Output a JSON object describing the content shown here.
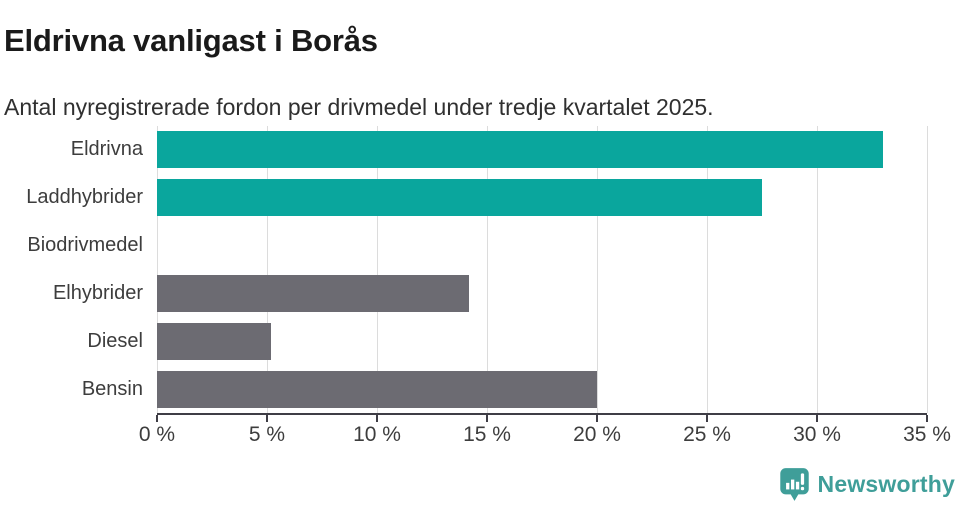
{
  "header": {
    "title": "Eldrivna vanligast i Borås",
    "subtitle": "Antal nyregistrerade fordon per drivmedel under tredje kvartalet 2025."
  },
  "chart_data": {
    "type": "bar",
    "orientation": "horizontal",
    "title": "Eldrivna vanligast i Borås",
    "subtitle": "Antal nyregistrerade fordon per drivmedel under tredje kvartalet 2025.",
    "categories": [
      "Eldrivna",
      "Laddhybrider",
      "Biodrivmedel",
      "Elhybrider",
      "Diesel",
      "Bensin"
    ],
    "values": [
      33,
      27.5,
      0,
      14.2,
      5.2,
      20
    ],
    "unit": "%",
    "bar_colors": [
      "#0aa69d",
      "#0aa69d",
      "#0aa69d",
      "#6c6b72",
      "#6c6b72",
      "#6c6b72"
    ],
    "xlim": [
      0,
      35
    ],
    "x_tick_values": [
      0,
      5,
      10,
      15,
      20,
      25,
      30,
      35
    ],
    "x_tick_labels": [
      "0 %",
      "5 %",
      "10 %",
      "15 %",
      "20 %",
      "25 %",
      "30 %",
      "35 %"
    ],
    "grid": true,
    "legend": false,
    "xlabel": "",
    "ylabel": ""
  },
  "colors": {
    "accent_teal": "#0aa69d",
    "neutral_gray": "#6c6b72",
    "gridline": "#dcdcdc",
    "axis": "#3f3e46",
    "logo_teal": "#3f9e99",
    "title_text": "#1a1a1a"
  },
  "footer": {
    "logo_text": "Newsworthy"
  }
}
